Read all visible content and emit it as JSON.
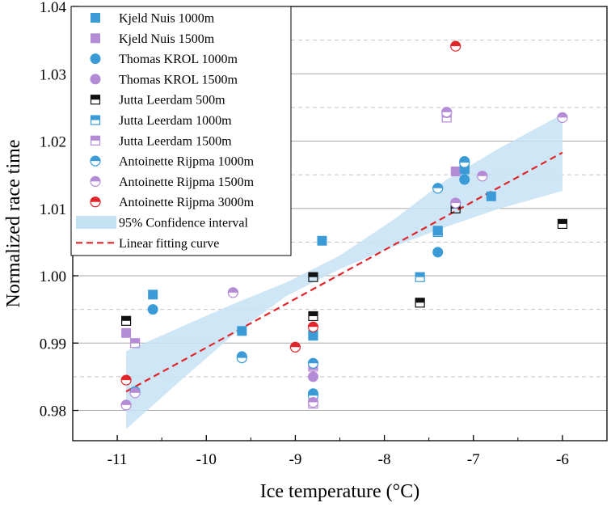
{
  "chart_data": {
    "type": "scatter",
    "title": "",
    "xlabel": "Ice temperature (°C)",
    "ylabel": "Normalized race time",
    "xlim": [
      -11.5,
      -5.5
    ],
    "ylim": [
      0.9755,
      1.04
    ],
    "xticks": [
      {
        "value": -11,
        "label": "-11"
      },
      {
        "value": -10,
        "label": "-10"
      },
      {
        "value": -9,
        "label": "-9"
      },
      {
        "value": -8,
        "label": "-8"
      },
      {
        "value": -7,
        "label": "-7"
      },
      {
        "value": -6,
        "label": "-6"
      }
    ],
    "yticks": [
      {
        "value": 0.98,
        "label": "0.98"
      },
      {
        "value": 0.99,
        "label": "0.99"
      },
      {
        "value": 1.0,
        "label": "1.00"
      },
      {
        "value": 1.01,
        "label": "1.01"
      },
      {
        "value": 1.02,
        "label": "1.02"
      },
      {
        "value": 1.03,
        "label": "1.03"
      },
      {
        "value": 1.04,
        "label": "1.04"
      }
    ],
    "grid": {
      "solid": [
        0.98,
        0.99,
        1.0,
        1.01,
        1.02,
        1.03
      ],
      "dashed": [
        0.985,
        0.995,
        1.005,
        1.015,
        1.025,
        1.035
      ]
    },
    "colors": {
      "blue": "#3b9bd6",
      "purple": "#b48cd6",
      "black": "#111111",
      "red": "#e0262a",
      "band": "#c5e2f3",
      "fit": "#e0262a"
    },
    "legend_position": "top-left",
    "series": [
      {
        "name": "Kjeld Nuis 1000m",
        "marker": "square",
        "fill": "full",
        "color": "blue",
        "points": [
          [
            -10.6,
            0.9972
          ],
          [
            -9.6,
            0.9918
          ],
          [
            -8.8,
            0.9912
          ],
          [
            -8.7,
            1.0052
          ],
          [
            -7.4,
            1.0067
          ],
          [
            -7.1,
            1.0158
          ],
          [
            -6.8,
            1.0118
          ]
        ]
      },
      {
        "name": "Kjeld Nuis 1500m",
        "marker": "square",
        "fill": "full",
        "color": "purple",
        "points": [
          [
            -10.9,
            0.9915
          ],
          [
            -8.8,
            0.9867
          ],
          [
            -7.2,
            1.0155
          ]
        ]
      },
      {
        "name": "Thomas KROL 1000m",
        "marker": "circle",
        "fill": "full",
        "color": "blue",
        "points": [
          [
            -10.6,
            0.995
          ],
          [
            -9.6,
            0.988
          ],
          [
            -8.8,
            0.9825
          ],
          [
            -7.4,
            1.0035
          ],
          [
            -7.4,
            1.013
          ],
          [
            -7.1,
            1.017
          ],
          [
            -7.1,
            1.0143
          ]
        ]
      },
      {
        "name": "Thomas KROL 1500m",
        "marker": "circle",
        "fill": "full",
        "color": "purple",
        "points": [
          [
            -10.9,
            0.9808
          ],
          [
            -9.7,
            0.9975
          ],
          [
            -8.8,
            0.985
          ],
          [
            -7.3,
            1.0242
          ],
          [
            -7.2,
            1.0108
          ],
          [
            -6.9,
            1.0148
          ],
          [
            -6.0,
            1.0235
          ]
        ]
      },
      {
        "name": "Jutta Leerdam 500m",
        "marker": "square",
        "fill": "top",
        "color": "black",
        "points": [
          [
            -10.9,
            0.9933
          ],
          [
            -8.8,
            0.9998
          ],
          [
            -8.8,
            0.994
          ],
          [
            -7.6,
            0.996
          ],
          [
            -7.2,
            1.01
          ],
          [
            -6.0,
            1.0077
          ]
        ]
      },
      {
        "name": "Jutta Leerdam 1000m",
        "marker": "square",
        "fill": "top",
        "color": "blue",
        "points": [
          [
            -8.8,
            0.9911
          ],
          [
            -7.6,
            0.9998
          ],
          [
            -7.4,
            1.0065
          ],
          [
            -7.1,
            1.016
          ]
        ]
      },
      {
        "name": "Jutta Leerdam 1500m",
        "marker": "square",
        "fill": "top",
        "color": "purple",
        "points": [
          [
            -10.8,
            0.99
          ],
          [
            -8.8,
            0.9865
          ],
          [
            -8.8,
            0.981
          ],
          [
            -7.3,
            1.0235
          ]
        ]
      },
      {
        "name": "Antoinette Rijpma 1000m",
        "marker": "circle",
        "fill": "top",
        "color": "blue",
        "points": [
          [
            -10.8,
            0.9828
          ],
          [
            -9.6,
            0.9878
          ],
          [
            -8.8,
            0.987
          ],
          [
            -8.8,
            0.9822
          ],
          [
            -7.4,
            1.013
          ],
          [
            -7.1,
            1.0168
          ]
        ]
      },
      {
        "name": "Antoinette Rijpma 1500m",
        "marker": "circle",
        "fill": "top",
        "color": "purple",
        "points": [
          [
            -10.9,
            0.9808
          ],
          [
            -10.8,
            0.9826
          ],
          [
            -9.7,
            0.9975
          ],
          [
            -8.8,
            0.9812
          ],
          [
            -7.3,
            1.0243
          ],
          [
            -7.2,
            1.0108
          ],
          [
            -6.9,
            1.0148
          ],
          [
            -6.0,
            1.0235
          ]
        ]
      },
      {
        "name": "Antoinette Rijpma 3000m",
        "marker": "circle",
        "fill": "top",
        "color": "red",
        "points": [
          [
            -10.9,
            0.9845
          ],
          [
            -9.0,
            0.9894
          ],
          [
            -8.8,
            0.9924
          ],
          [
            -7.2,
            1.0341
          ]
        ]
      }
    ],
    "confidence_band": {
      "name": "95% Confidence interval",
      "x": [
        -10.9,
        -10.3,
        -9.7,
        -9.1,
        -8.5,
        -7.9,
        -7.3,
        -6.7,
        -6.0
      ],
      "lower": [
        0.9772,
        0.9843,
        0.9912,
        0.997,
        1.001,
        1.0043,
        1.0073,
        1.01,
        1.0126
      ],
      "upper": [
        0.9888,
        0.9923,
        0.9958,
        0.999,
        1.003,
        1.0083,
        1.0143,
        1.019,
        1.024
      ]
    },
    "fit": {
      "name": "Linear fitting curve",
      "x": [
        -10.9,
        -6.0
      ],
      "y": [
        0.9828,
        1.0183
      ]
    }
  }
}
